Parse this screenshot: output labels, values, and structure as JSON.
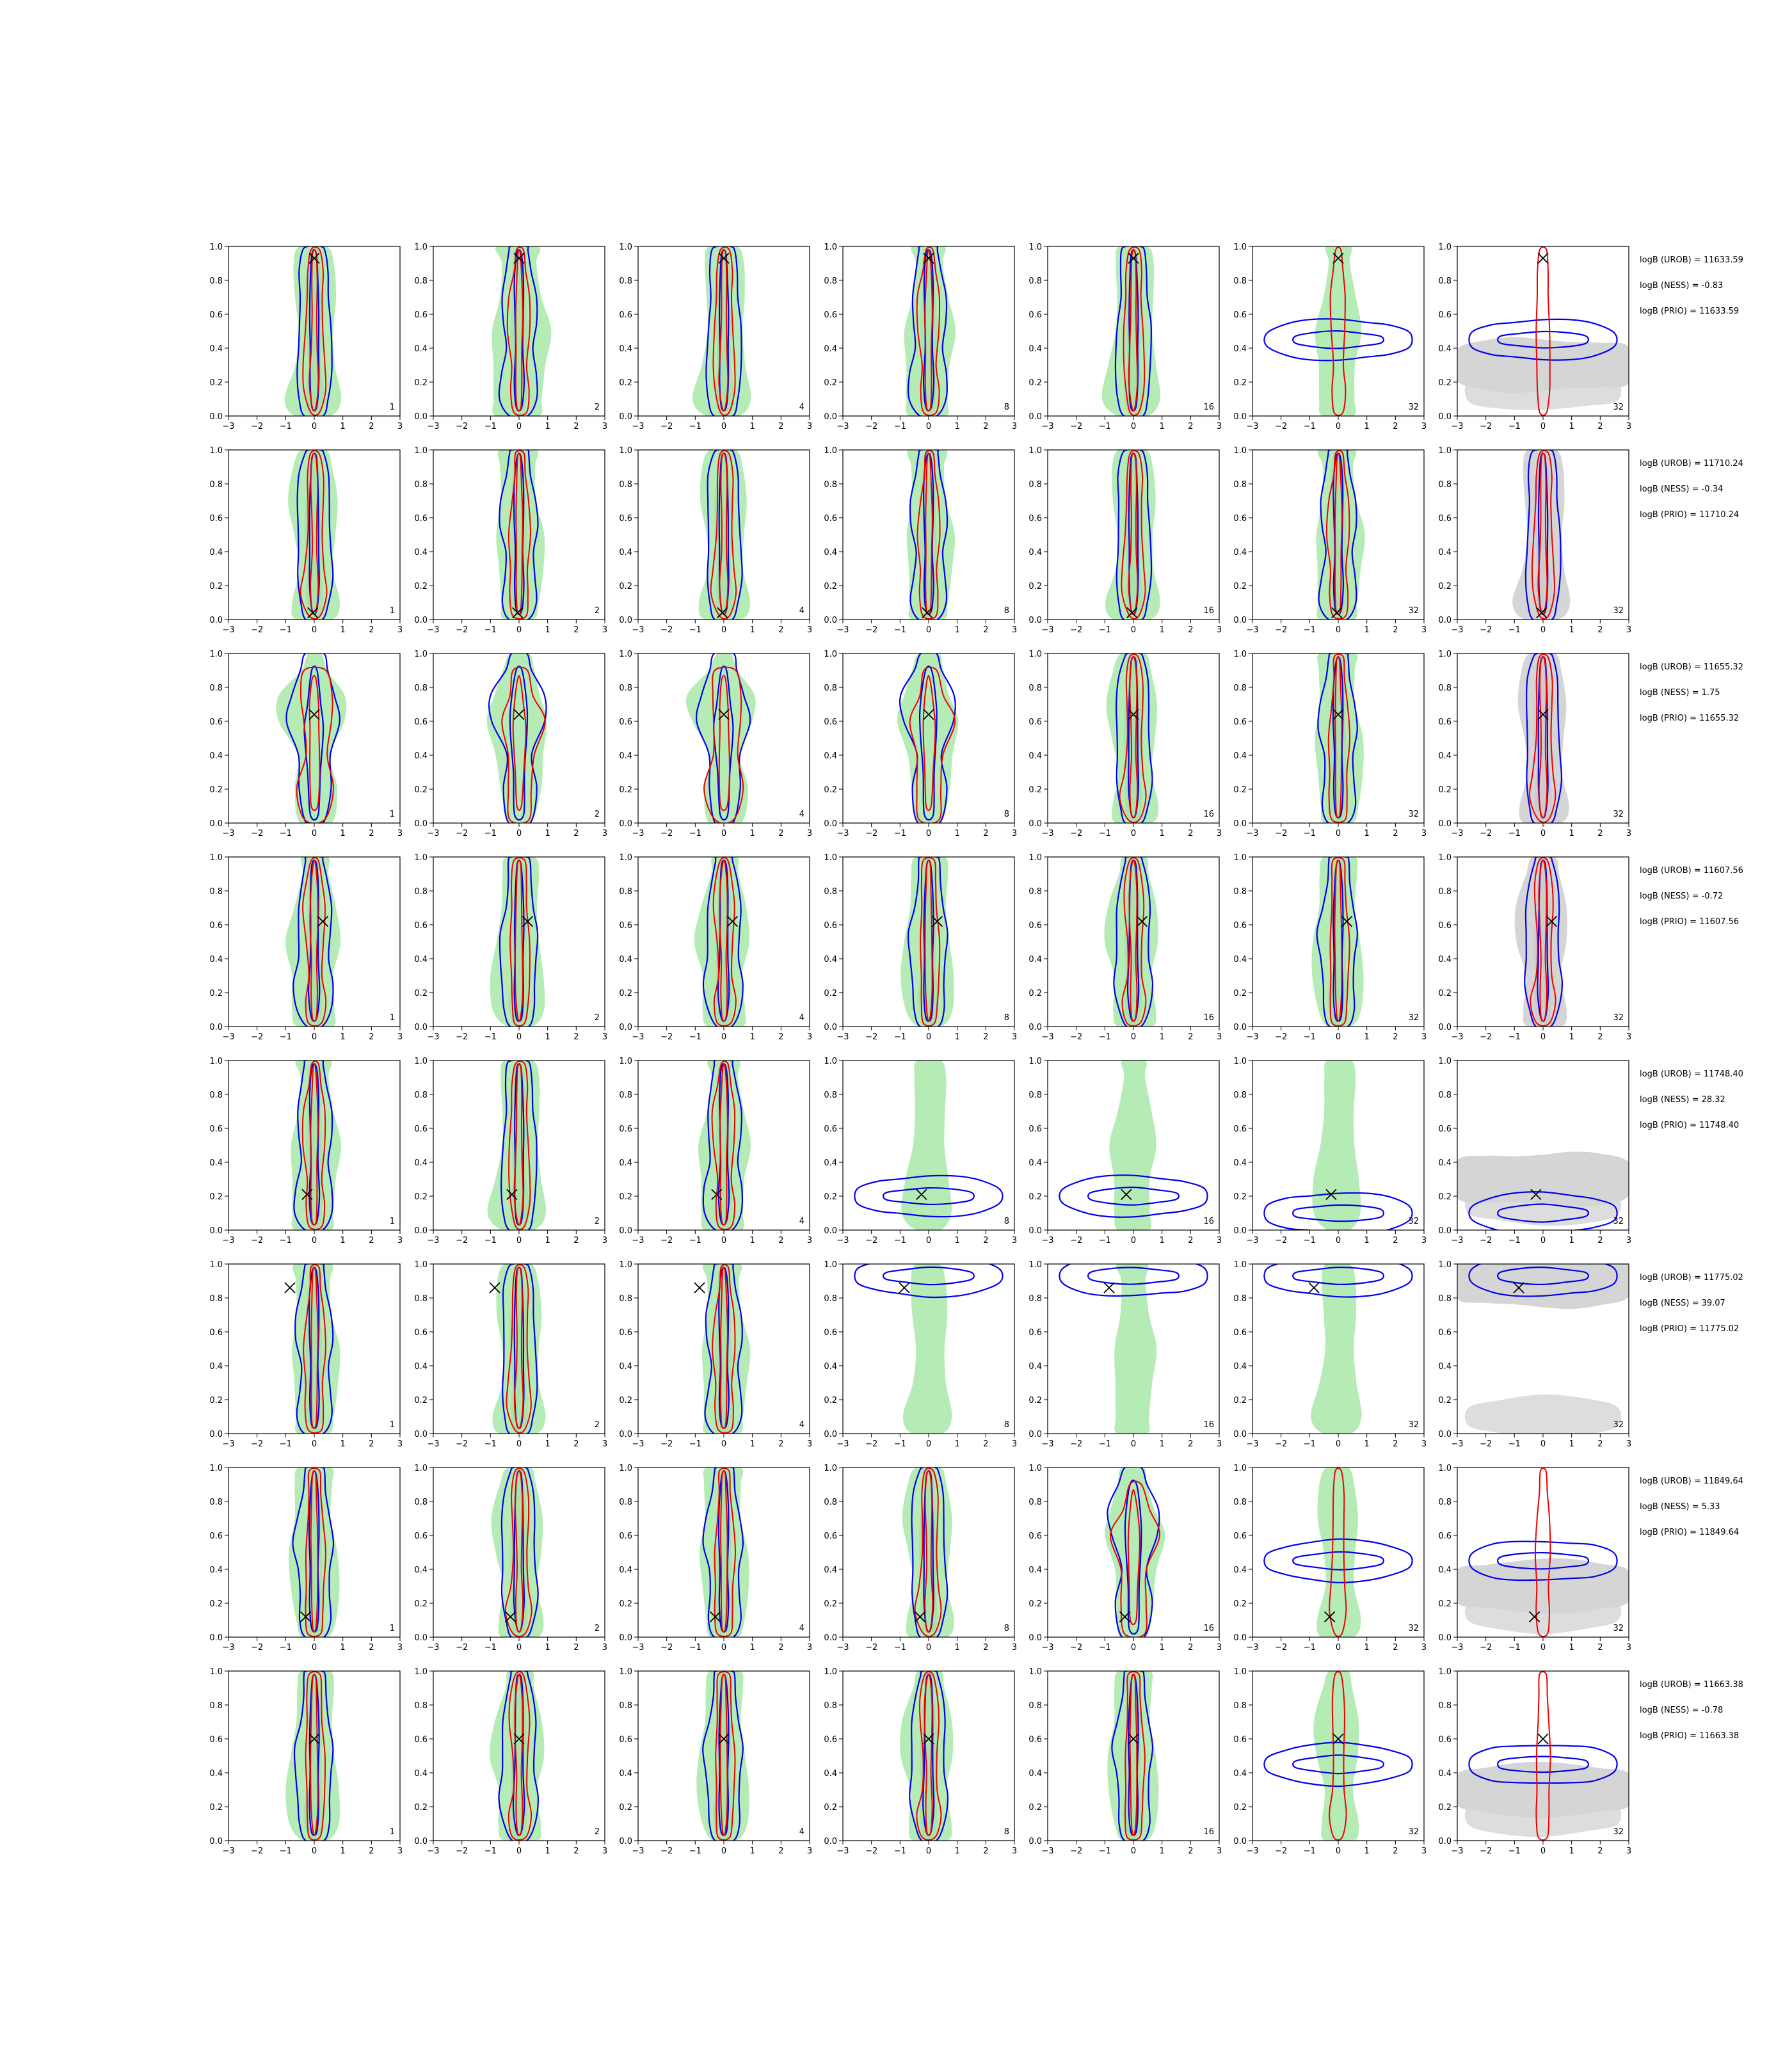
{
  "colors": {
    "green_fill": "#b5ebb5",
    "gray_fill": "#d5d5d5",
    "gray_inner": "#c8c8c8",
    "blue_contour": "#0000ee",
    "red_contour": "#ee0000",
    "marker": "#000000"
  },
  "chart_data": {
    "type": "contour-grid",
    "rows": 8,
    "cols": 7,
    "xlim": [
      -3,
      3
    ],
    "ylim": [
      0.0,
      1.0
    ],
    "xticks": [
      "−3",
      "−2",
      "−1",
      "0",
      "1",
      "2",
      "3"
    ],
    "yticks": [
      "0.0",
      "0.2",
      "0.4",
      "0.6",
      "0.8",
      "1.0"
    ],
    "column_labels": [
      "1",
      "2",
      "4",
      "8",
      "16",
      "32",
      "32"
    ],
    "legend": "none",
    "grid": false,
    "rows_data": [
      {
        "marker": {
          "x": 0.0,
          "y": 0.93
        },
        "logB": {
          "urob": "logB (UROB) = 11633.59",
          "ness": "logB (NESS) = -0.83",
          "prio": "logB (PRIO) = 11633.59"
        },
        "panels": [
          "vert",
          "vert_wide",
          "vert",
          "vert",
          "vert",
          "horiz_band_center",
          "horiz_band_center_gray"
        ]
      },
      {
        "marker": {
          "x": -0.05,
          "y": 0.04
        },
        "logB": {
          "urob": "logB (UROB) = 11710.24",
          "ness": "logB (NESS) = -0.34",
          "prio": "logB (PRIO) = 11710.24"
        },
        "panels": [
          "vert",
          "vert",
          "vert",
          "vert",
          "vert",
          "vert",
          "vert_gray"
        ]
      },
      {
        "marker": {
          "x": 0.0,
          "y": 0.64
        },
        "logB": {
          "urob": "logB (UROB) = 11655.32",
          "ness": "logB (NESS) = 1.75",
          "prio": "logB (PRIO) = 11655.32"
        },
        "panels": [
          "blob",
          "blob",
          "diamond",
          "diamond",
          "vert",
          "vert",
          "vert_gray"
        ]
      },
      {
        "marker": {
          "x": 0.3,
          "y": 0.62
        },
        "logB": {
          "urob": "logB (UROB) = 11607.56",
          "ness": "logB (NESS) = -0.72",
          "prio": "logB (PRIO) = 11607.56"
        },
        "panels": [
          "vert",
          "vert",
          "vert",
          "vert",
          "vert",
          "vert",
          "vert_gray"
        ]
      },
      {
        "marker": {
          "x": -0.25,
          "y": 0.21
        },
        "logB": {
          "urob": "logB (UROB) = 11748.40",
          "ness": "logB (NESS) = 28.32",
          "prio": "logB (PRIO) = 11748.40"
        },
        "panels": [
          "vert",
          "vert",
          "vert",
          "horiz_band_low",
          "horiz_band_low",
          "horiz_band_lower",
          "horiz_band_lower_gray"
        ]
      },
      {
        "marker": {
          "x": -0.85,
          "y": 0.86
        },
        "logB": {
          "urob": "logB (UROB) = 11775.02",
          "ness": "logB (NESS) = 39.07",
          "prio": "logB (PRIO) = 11775.02"
        },
        "panels": [
          "vert",
          "vert",
          "vert",
          "horiz_band_top",
          "horiz_band_top",
          "horiz_band_top",
          "horiz_band_top_gray"
        ]
      },
      {
        "marker": {
          "x": -0.3,
          "y": 0.12
        },
        "logB": {
          "urob": "logB (UROB) = 11849.64",
          "ness": "logB (NESS) = 5.33",
          "prio": "logB (PRIO) = 11849.64"
        },
        "panels": [
          "vert",
          "vert",
          "vert",
          "vert",
          "diamond",
          "horiz_band_center",
          "horiz_band_center_gray"
        ]
      },
      {
        "marker": {
          "x": 0.0,
          "y": 0.6
        },
        "logB": {
          "urob": "logB (UROB) = 11663.38",
          "ness": "logB (NESS) = -0.78",
          "prio": "logB (PRIO) = 11663.38"
        },
        "panels": [
          "vert",
          "vert",
          "vert",
          "vert",
          "vert",
          "horiz_band_center",
          "horiz_band_center_gray"
        ]
      }
    ]
  }
}
